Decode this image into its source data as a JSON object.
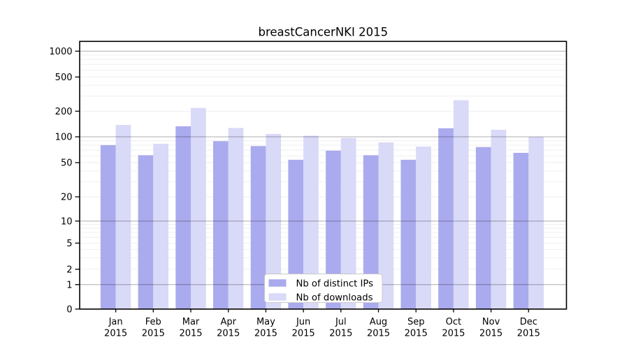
{
  "chart_data": {
    "type": "bar",
    "title": "breastCancerNKI 2015",
    "year": "2015",
    "categories": [
      "Jan",
      "Feb",
      "Mar",
      "Apr",
      "May",
      "Jun",
      "Jul",
      "Aug",
      "Sep",
      "Oct",
      "Nov",
      "Dec"
    ],
    "series": [
      {
        "name": "Nb of distinct IPs",
        "color": "#aaaaee",
        "values": [
          80,
          61,
          133,
          89,
          78,
          54,
          69,
          61,
          54,
          126,
          76,
          65
        ]
      },
      {
        "name": "Nb of downloads",
        "color": "#d9d9f8",
        "values": [
          138,
          83,
          218,
          127,
          108,
          103,
          97,
          86,
          77,
          268,
          121,
          100
        ]
      }
    ],
    "y_ticks": [
      0,
      1,
      2,
      5,
      10,
      20,
      50,
      100,
      200,
      500,
      1000
    ],
    "y_scale": "symlog",
    "ylim": [
      0,
      1300
    ],
    "xlabel": "",
    "ylabel": "",
    "grid": "horizontal",
    "legend_position": "bottom-center",
    "colors": {
      "axis": "#000000",
      "major_grid": "rgba(0,0,0,0.32)",
      "minor_grid": "rgba(0,0,0,0.07)",
      "legend_border": "#c9c9c9",
      "legend_bg": "#ffffff"
    }
  }
}
